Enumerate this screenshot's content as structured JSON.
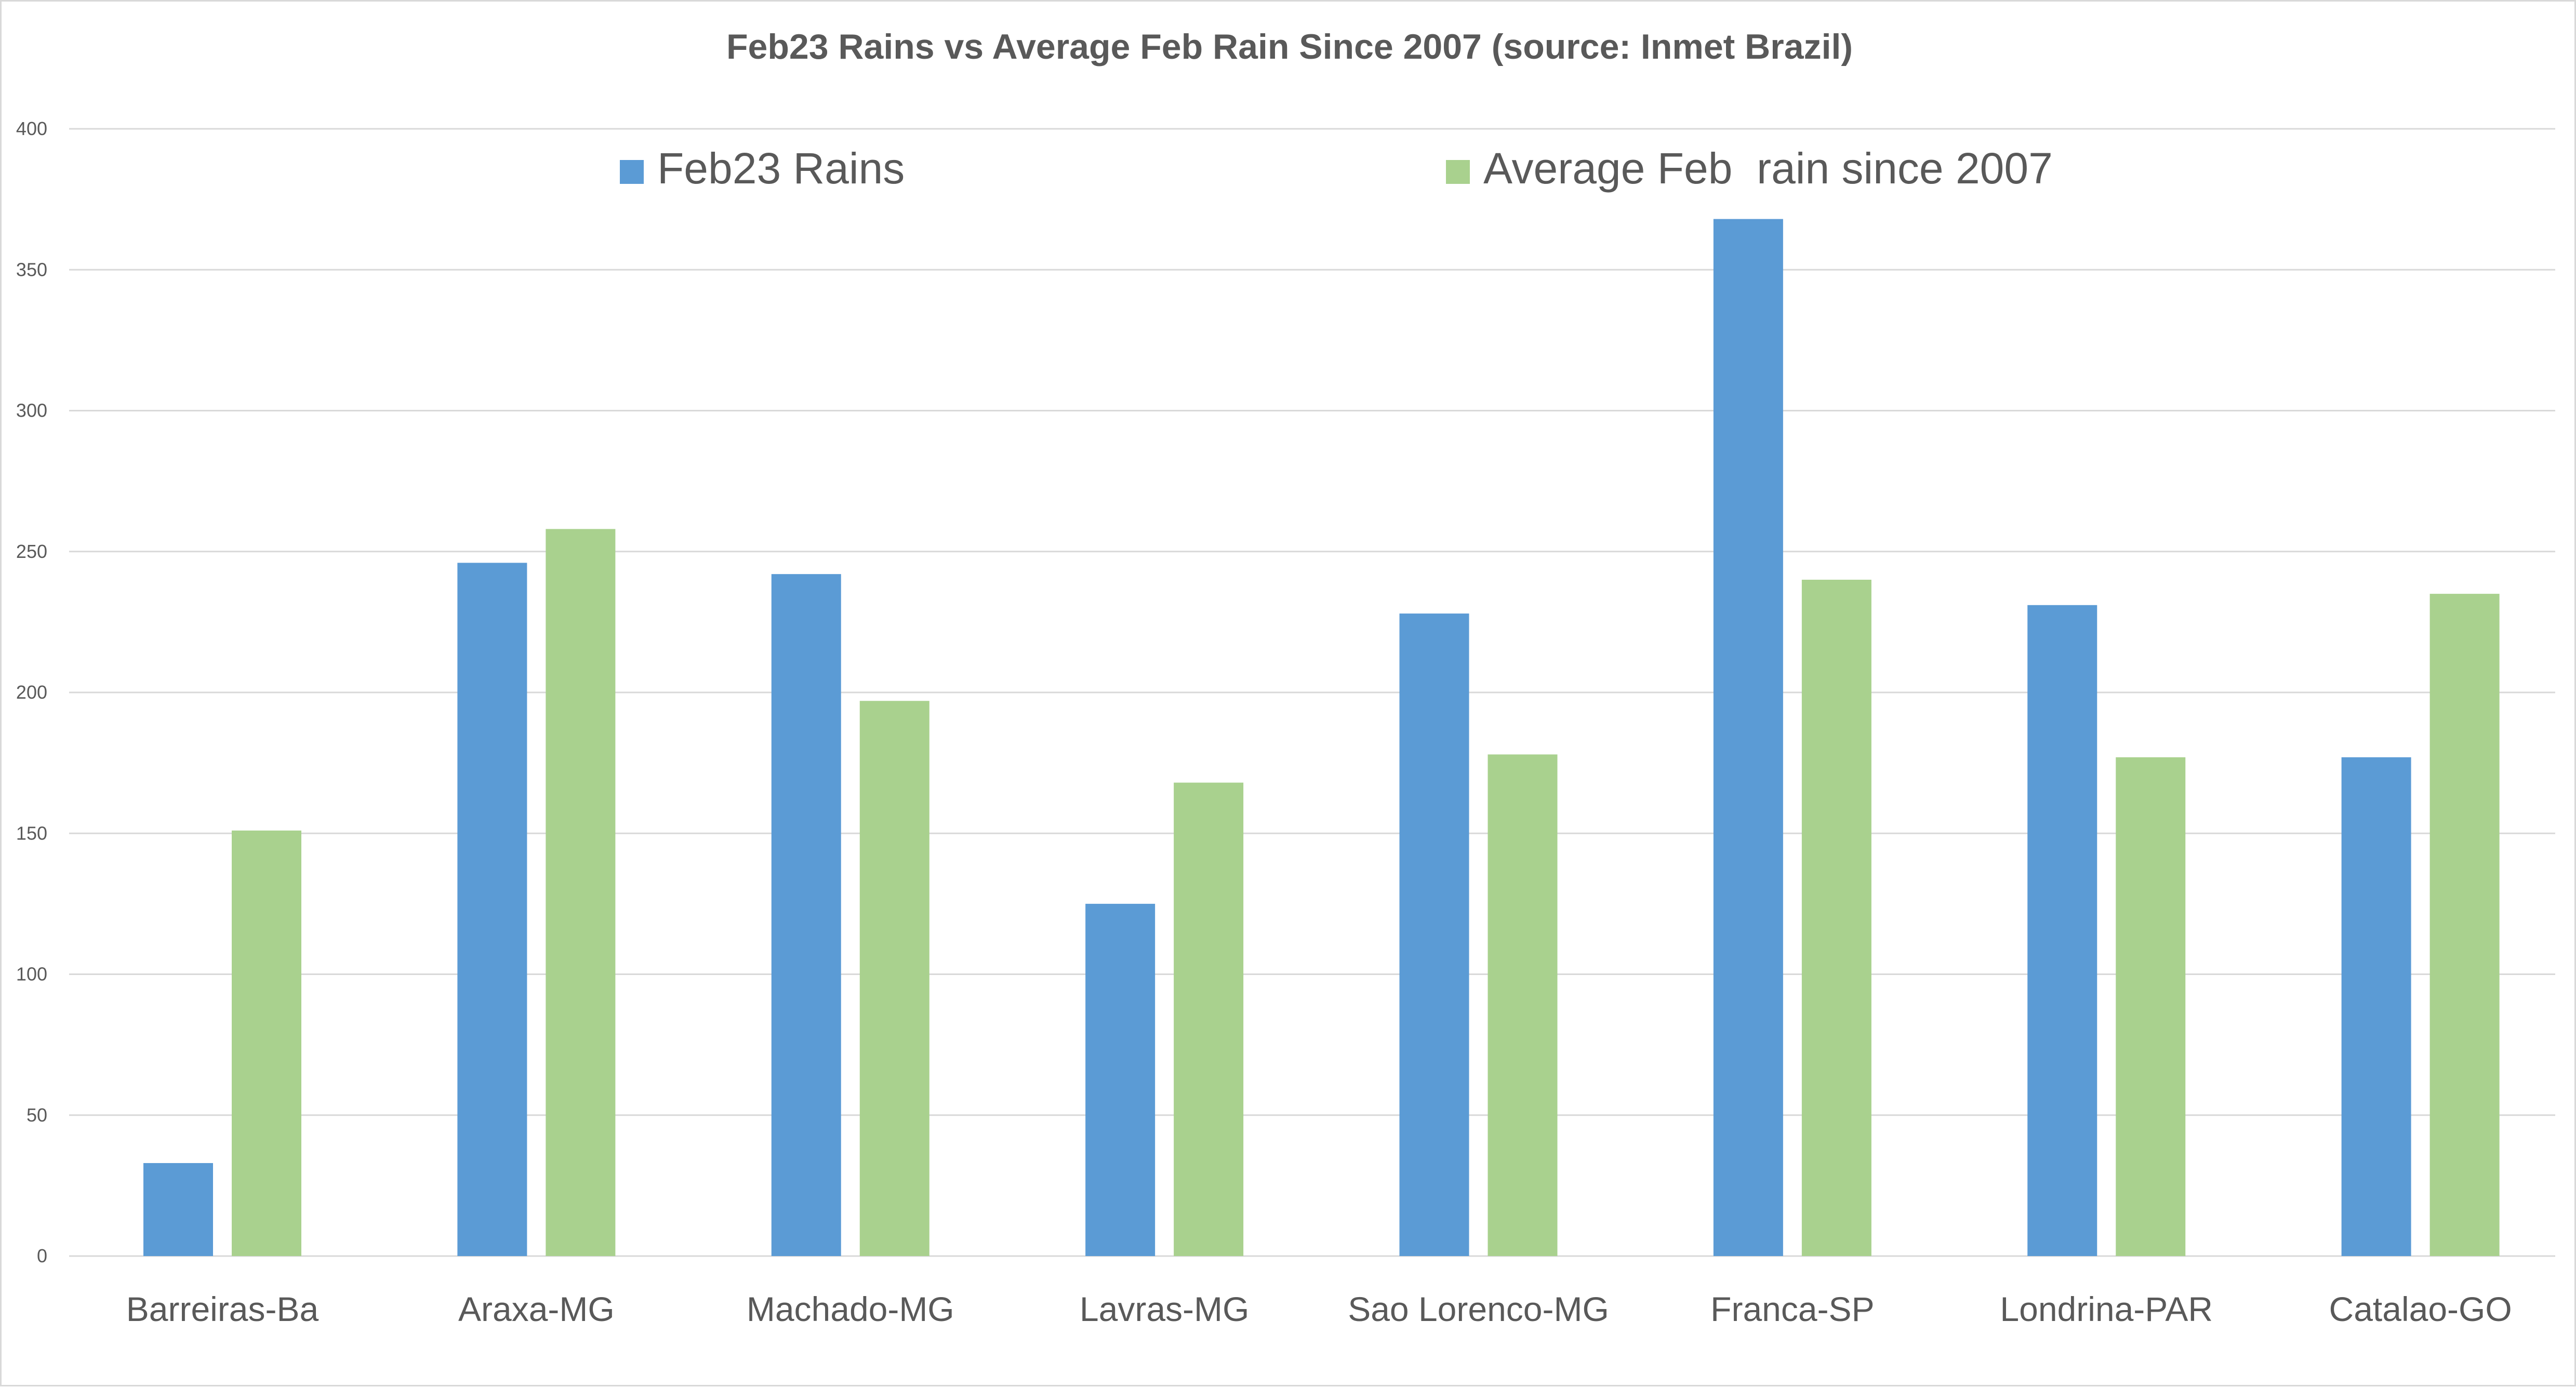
{
  "chart_data": {
    "type": "bar",
    "title": "Feb23 Rains vs Average Feb Rain Since 2007 (source: Inmet Brazil)",
    "xlabel": "",
    "ylabel": "",
    "ylim": [
      0,
      400
    ],
    "yticks": [
      0,
      50,
      100,
      150,
      200,
      250,
      300,
      350,
      400
    ],
    "grid": true,
    "legend_position": "top-center",
    "categories": [
      "Barreiras-Ba",
      "Araxa-MG",
      "Machado-MG",
      "Lavras-MG",
      "Sao Lorenco-MG",
      "Franca-SP",
      "Londrina-PAR",
      "Catalao-GO"
    ],
    "series": [
      {
        "name": "Feb23 Rains",
        "color": "#5b9bd5",
        "values": [
          33,
          246,
          242,
          125,
          228,
          368,
          231,
          177
        ]
      },
      {
        "name": "Average Feb  rain since 2007",
        "color": "#a9d18e",
        "values": [
          151,
          258,
          197,
          168,
          178,
          240,
          177,
          235
        ]
      }
    ]
  }
}
